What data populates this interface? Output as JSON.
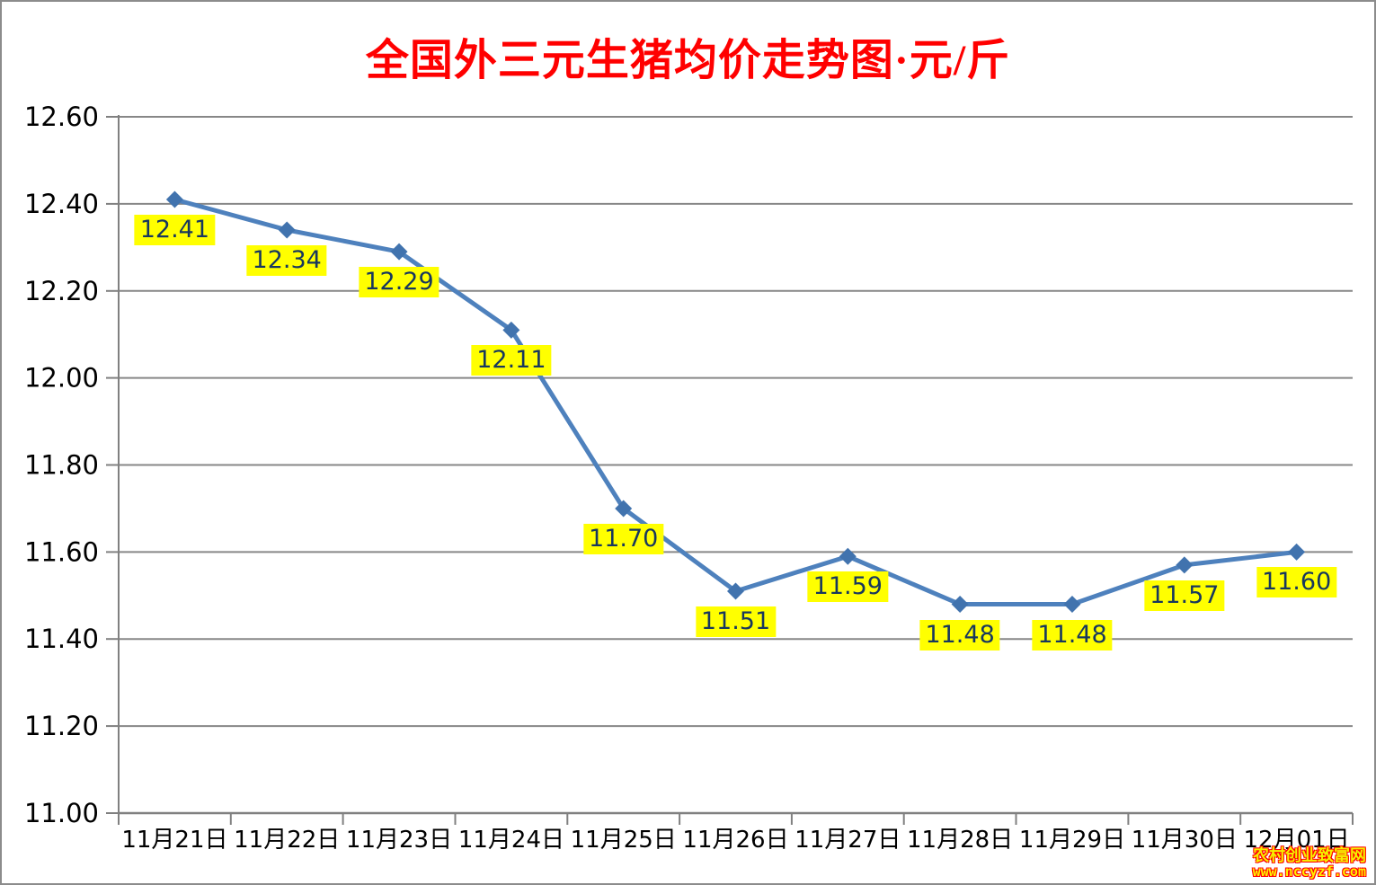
{
  "chart_data": {
    "type": "line",
    "title": "全国外三元生猪均价走势图·元/斤",
    "unit": "元/斤",
    "categories": [
      "11月21日",
      "11月22日",
      "11月23日",
      "11月24日",
      "11月25日",
      "11月26日",
      "11月27日",
      "11月28日",
      "11月29日",
      "11月30日",
      "12月01日"
    ],
    "values": [
      12.41,
      12.34,
      12.29,
      12.11,
      11.7,
      11.51,
      11.59,
      11.48,
      11.48,
      11.57,
      11.6
    ],
    "ylim": [
      11.0,
      12.6
    ],
    "ytick_step": 0.2,
    "yticks": [
      "12.60",
      "12.40",
      "12.20",
      "12.00",
      "11.80",
      "11.60",
      "11.40",
      "11.20",
      "11.00"
    ],
    "grid": true,
    "legend": "none",
    "marker": "diamond",
    "data_labels": "value below each point on yellow background"
  },
  "watermark": {
    "line1": "农村创业致富网",
    "line2": "www.nccyzf.com"
  },
  "colors": {
    "title": "#FF0000",
    "line": "#4E81BD",
    "marker": "#4173AE",
    "grid": "#878787",
    "axis": "#808080",
    "tick_label": "#000000",
    "label_bg": "#FFFF00",
    "label_text": "#17375E",
    "watermark_text": "#FFF000",
    "watermark_outline": "#FF0000"
  }
}
